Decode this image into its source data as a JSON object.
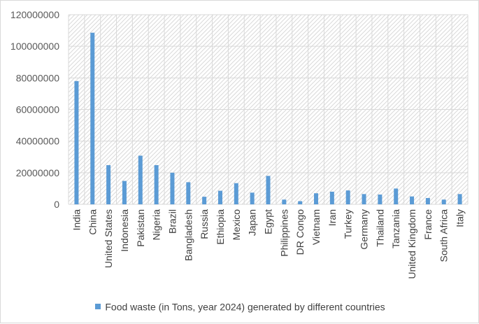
{
  "chart_data": {
    "type": "bar",
    "title": "",
    "xlabel": "",
    "ylabel": "",
    "ylim": [
      0,
      120000000
    ],
    "yticks": [
      0,
      20000000,
      40000000,
      60000000,
      80000000,
      100000000,
      120000000
    ],
    "ytick_labels": [
      "0",
      "20000000",
      "40000000",
      "60000000",
      "80000000",
      "100000000",
      "120000000"
    ],
    "categories": [
      "India",
      "China",
      "United States",
      "Indonesia",
      "Pakistan",
      "Nigeria",
      "Brazil",
      "Bangladesh",
      "Russia",
      "Ethiopia",
      "Mexico",
      "Japan",
      "Egypt",
      "Philippines",
      "DR Congo",
      "Vietnam",
      "Iran",
      "Turkey",
      "Germany",
      "Thailand",
      "Tanzania",
      "United Kingdom",
      "France",
      "South Africa",
      "Italy"
    ],
    "series": [
      {
        "name": "Food waste (in Tons, year 2024) generated by different countries",
        "color": "#5b9bd5",
        "values": [
          78000000,
          108600000,
          24800000,
          14800000,
          30800000,
          24800000,
          20000000,
          14000000,
          4800000,
          8600000,
          13400000,
          7400000,
          18000000,
          3000000,
          2000000,
          7000000,
          8000000,
          8800000,
          6500000,
          6200000,
          10000000,
          5000000,
          4000000,
          3000000,
          6500000
        ]
      }
    ],
    "grid": true,
    "plot_background": "diagonal-hatch",
    "legend_position": "bottom"
  },
  "legend": {
    "label": "Food waste (in Tons, year 2024) generated by different countries"
  }
}
